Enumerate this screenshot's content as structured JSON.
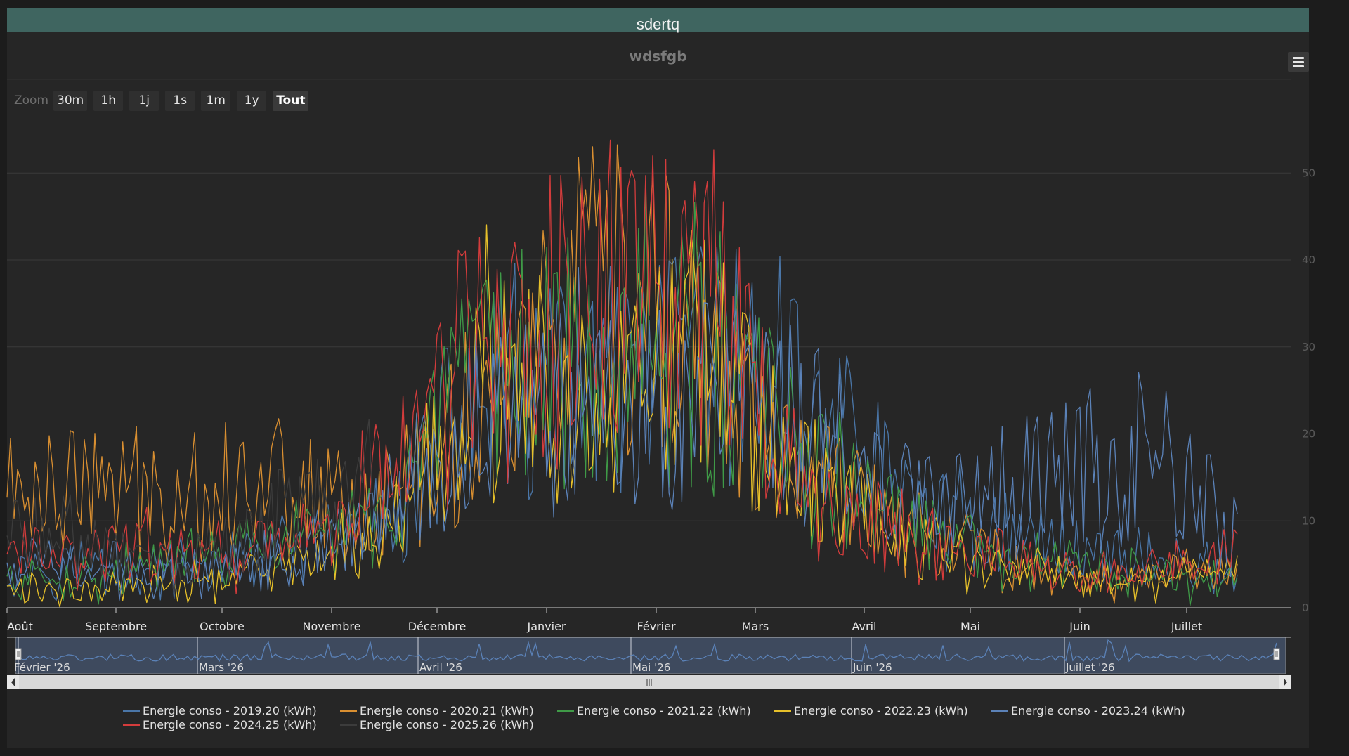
{
  "header": {
    "title": "sdertq"
  },
  "menu_icon": "hamburger-menu-icon",
  "zoom": {
    "label": "Zoom",
    "buttons": [
      "30m",
      "1h",
      "1j",
      "1s",
      "1m",
      "1y",
      "Tout"
    ],
    "selected": "Tout"
  },
  "navigator": {
    "labels": [
      "Février '26",
      "Mars '26",
      "Avril '26",
      "Mai '26",
      "Juin '26",
      "Juillet '26"
    ],
    "scrollbar_icon": "scrollbar-grip-icon"
  },
  "colors": {
    "background": "#262626",
    "header": "#3f6560",
    "navigator_fill": "#3e4a5e"
  },
  "chart_data": {
    "type": "line",
    "title": "wdsfgb",
    "xlabel": "",
    "ylabel": "",
    "x_type": "day-of-season (August to July)",
    "x_categories": [
      "Août",
      "Septembre",
      "Octobre",
      "Novembre",
      "Décembre",
      "Janvier",
      "Février",
      "Mars",
      "Avril",
      "Mai",
      "Juin",
      "Juillet"
    ],
    "yticks": [
      0,
      10,
      20,
      30,
      40,
      50
    ],
    "ylim": [
      0,
      56
    ],
    "grid": true,
    "legend_position": "bottom",
    "series": [
      {
        "name": "Energie conso - 2019.20 (kWh)",
        "color": "#4a76a8",
        "x": [
          "Août",
          "Septembre",
          "Octobre",
          "Novembre",
          "Décembre",
          "Janvier",
          "Février",
          "Mars",
          "Avril",
          "Mai",
          "Juin",
          "Juillet",
          "Juillet"
        ],
        "y": [
          5,
          4,
          6,
          9,
          25,
          25,
          28,
          25,
          12,
          8,
          6,
          5,
          4
        ]
      },
      {
        "name": "Energie conso - 2020.21 (kWh)",
        "color": "#d98f31",
        "x": [
          "Août",
          "Septembre",
          "Octobre",
          "Novembre",
          "Décembre",
          "Janvier",
          "Février",
          "Mars",
          "Avril",
          "Mai",
          "Juin",
          "Juillet",
          "Juillet"
        ],
        "y": [
          14,
          13,
          15,
          11,
          24,
          35,
          30,
          15,
          10,
          5,
          3,
          4,
          5
        ]
      },
      {
        "name": "Energie conso - 2021.22 (kWh)",
        "color": "#3f9a47",
        "x": [
          "Août",
          "Septembre",
          "Octobre",
          "Novembre",
          "Décembre",
          "Janvier",
          "Février",
          "Mars",
          "Avril",
          "Mai",
          "Juin",
          "Juillet",
          "Juillet"
        ],
        "y": [
          3,
          5,
          7,
          10,
          26,
          32,
          30,
          17,
          9,
          5,
          4,
          3,
          3
        ]
      },
      {
        "name": "Energie conso - 2022.23 (kWh)",
        "color": "#e6c02a",
        "x": [
          "Août",
          "Septembre",
          "Octobre",
          "Novembre",
          "Décembre",
          "Janvier",
          "Février",
          "Mars",
          "Avril",
          "Mai",
          "Juin",
          "Juillet",
          "Juillet"
        ],
        "y": [
          2,
          3,
          4,
          8,
          28,
          22,
          30,
          14,
          8,
          4,
          3,
          4,
          6
        ]
      },
      {
        "name": "Energie conso - 2023.24 (kWh)",
        "color": "#5b82b8",
        "x": [
          "Août",
          "Septembre",
          "Octobre",
          "Novembre",
          "Décembre",
          "Janvier",
          "Février",
          "Mars",
          "Avril",
          "Mai",
          "Juin",
          "Juillet",
          "Juillet"
        ],
        "y": [
          5,
          4,
          6,
          10,
          22,
          27,
          24,
          20,
          12,
          14,
          18,
          15,
          8
        ]
      },
      {
        "name": "Energie conso - 2024.25 (kWh)",
        "color": "#d43c3c",
        "x": [
          "Août",
          "Septembre",
          "Octobre",
          "Novembre",
          "Décembre",
          "Janvier",
          "Février",
          "Mars",
          "Avril",
          "Mai",
          "Juin",
          "Juillet",
          "Juillet"
        ],
        "y": [
          6,
          7,
          6,
          15,
          30,
          35,
          38,
          12,
          8,
          5,
          4,
          5,
          6
        ]
      },
      {
        "name": "Energie conso - 2025.26 (kWh)",
        "color": "#3c3c3c",
        "x": [
          "Août",
          "Septembre",
          "Octobre",
          "Novembre"
        ],
        "y": [
          8,
          5,
          10,
          14
        ]
      }
    ]
  }
}
